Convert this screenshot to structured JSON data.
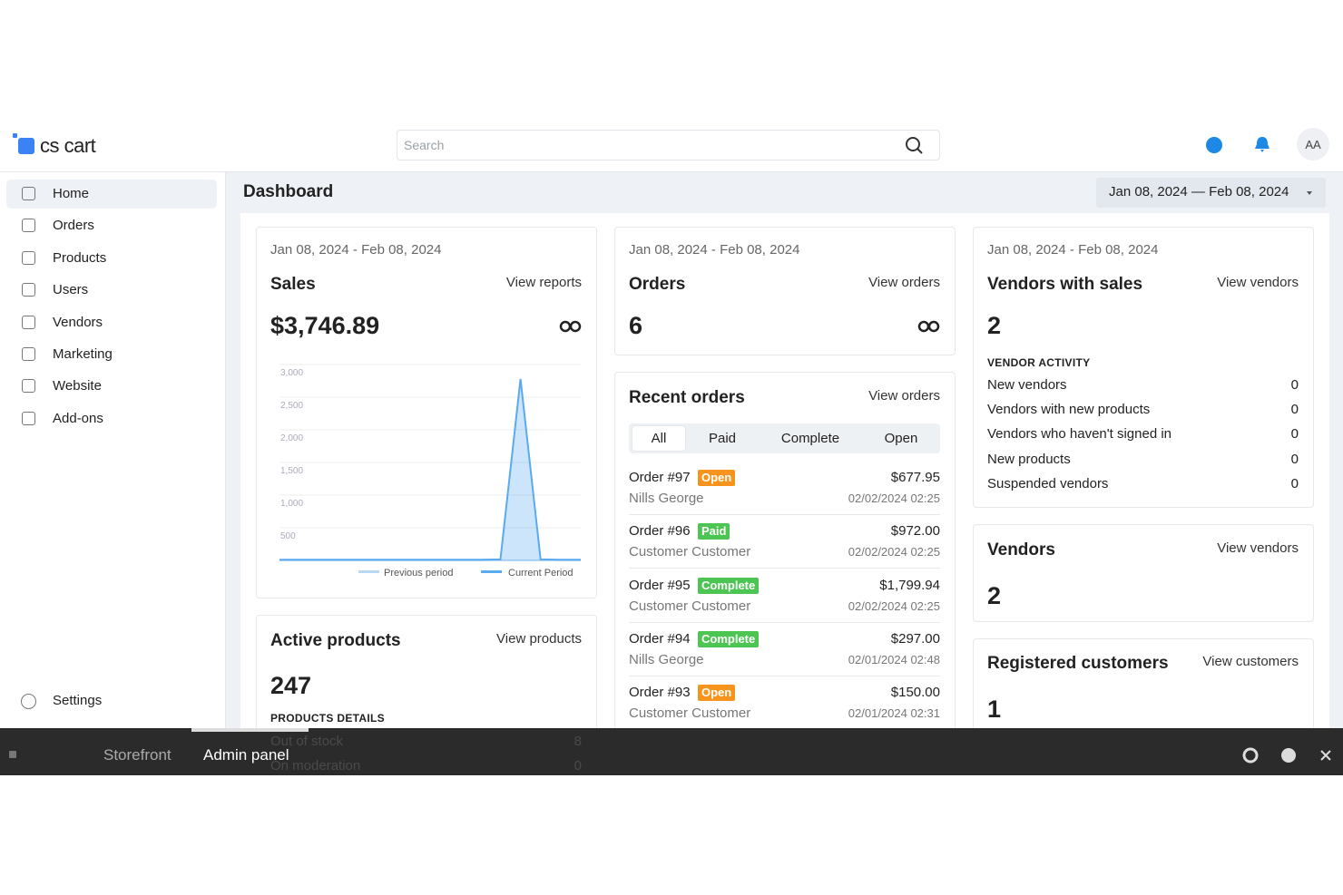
{
  "header": {
    "logo": "cs cart",
    "search_placeholder": "Search",
    "avatar": "AA"
  },
  "sidebar": {
    "items": [
      "Home",
      "Orders",
      "Products",
      "Users",
      "Vendors",
      "Marketing",
      "Website",
      "Add-ons"
    ],
    "settings": "Settings"
  },
  "page": {
    "title": "Dashboard",
    "date_range": "Jan 08, 2024 — Feb 08, 2024"
  },
  "sales": {
    "period": "Jan 08, 2024 - Feb 08, 2024",
    "title": "Sales",
    "link": "View reports",
    "total": "$3,746.89",
    "chart": {
      "type": "line",
      "ylim": [
        0,
        3000
      ],
      "yticks": [
        500,
        {
          "value": 1000,
          "label": "1,000"
        },
        {
          "value": 1500,
          "label": "1,500"
        },
        {
          "value": 2000,
          "label": "2,000"
        },
        {
          "value": 2500,
          "label": "2,500"
        },
        {
          "value": 3000,
          "label": "3,000"
        }
      ],
      "grid": true,
      "series": [
        {
          "name": "Previous period",
          "color": "#b9d8f5",
          "values": [
            0,
            0,
            0,
            0,
            0,
            0,
            0,
            0,
            0,
            0,
            0,
            0,
            0,
            0,
            0,
            0
          ]
        },
        {
          "name": "Current Period",
          "color": "#5aaaf0",
          "values": [
            10,
            10,
            10,
            10,
            10,
            10,
            10,
            10,
            10,
            10,
            10,
            15,
            2780,
            15,
            10,
            10
          ]
        }
      ]
    }
  },
  "orders_card": {
    "period": "Jan 08, 2024 - Feb 08, 2024",
    "title": "Orders",
    "link": "View orders",
    "total": 6
  },
  "vendors_with_sales": {
    "period": "Jan 08, 2024 - Feb 08, 2024",
    "title": "Vendors with sales",
    "link": "View vendors",
    "total": 2,
    "activity_title": "VENDOR ACTIVITY",
    "activity": [
      {
        "label": "New vendors",
        "value": 0
      },
      {
        "label": "Vendors with new products",
        "value": 0
      },
      {
        "label": "Vendors who haven't signed in",
        "value": 0
      },
      {
        "label": "New products",
        "value": 0
      },
      {
        "label": "Suspended vendors",
        "value": 0
      }
    ]
  },
  "recent_orders": {
    "title": "Recent orders",
    "link": "View orders",
    "tabs": [
      "All",
      "Paid",
      "Complete",
      "Open"
    ],
    "orders": [
      {
        "number": "Order #97",
        "status": "Open",
        "status_color": "#f7941d",
        "customer": "Nills George",
        "amount": "$677.95",
        "date": "02/02/2024 02:25"
      },
      {
        "number": "Order #96",
        "status": "Paid",
        "status_color": "#4cc552",
        "customer": "Customer Customer",
        "amount": "$972.00",
        "date": "02/02/2024 02:25"
      },
      {
        "number": "Order #95",
        "status": "Complete",
        "status_color": "#4cc552",
        "customer": "Customer Customer",
        "amount": "$1,799.94",
        "date": "02/02/2024 02:25"
      },
      {
        "number": "Order #94",
        "status": "Complete",
        "status_color": "#4cc552",
        "customer": "Nills George",
        "amount": "$297.00",
        "date": "02/01/2024 02:48"
      },
      {
        "number": "Order #93",
        "status": "Open",
        "status_color": "#f7941d",
        "customer": "Customer Customer",
        "amount": "$150.00",
        "date": "02/01/2024 02:31"
      }
    ]
  },
  "vendors": {
    "title": "Vendors",
    "link": "View vendors",
    "total": 2
  },
  "registered_customers": {
    "title": "Registered customers",
    "link": "View customers",
    "total": 1
  },
  "active_products": {
    "title": "Active products",
    "link": "View products",
    "total": 247,
    "details_title": "PRODUCTS DETAILS",
    "details": [
      {
        "label": "Out of stock",
        "value": 8
      },
      {
        "label": "On moderation",
        "value": 0
      }
    ]
  },
  "bottom_bar": {
    "storefront": "Storefront",
    "admin_panel": "Admin panel"
  }
}
